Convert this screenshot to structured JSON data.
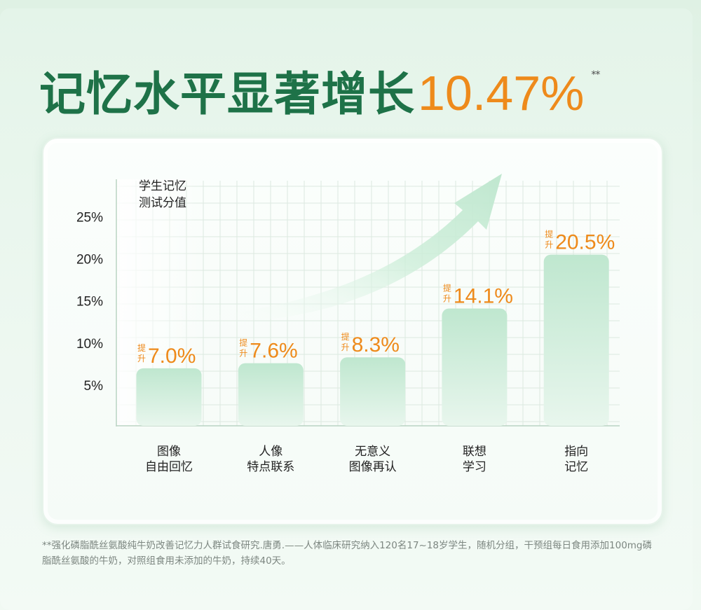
{
  "headline": {
    "main": "记忆水平显著增长",
    "number": "10.47%",
    "superscript": "**"
  },
  "chart_data": {
    "type": "bar",
    "ylabel": "学生记忆\n测试分值",
    "ylim": [
      0,
      29
    ],
    "yticks": [
      5,
      10,
      15,
      20,
      25
    ],
    "ytick_labels": [
      "5%",
      "10%",
      "15%",
      "20%",
      "25%"
    ],
    "categories": [
      "图像\n自由回忆",
      "人像\n特点联系",
      "无意义\n图像再认",
      "联想\n学习",
      "指向\n记忆"
    ],
    "values": [
      7.0,
      7.6,
      8.3,
      14.1,
      20.5
    ],
    "data_labels": [
      "7.0%",
      "7.6%",
      "8.3%",
      "14.1%",
      "20.5%"
    ],
    "label_prefix": "提升",
    "grid": true,
    "trend_arrow": true
  },
  "footnote": "**强化磷脂酰丝氨酸纯牛奶改善记忆力人群试食研究.唐勇.——人体临床研究纳入120名17~18岁学生，随机分组，干预组每日食用添加100mg磷脂酰丝氨酸的牛奶，对照组食用未添加的牛奶，持续40天。",
  "colors": {
    "title_green": "#1e7248",
    "accent_orange": "#ee8a1b",
    "bar_top": "#bfe7cf",
    "bar_bottom": "#e8f6ed",
    "grid": "#dce9e0",
    "axis": "#b9d3c2"
  }
}
